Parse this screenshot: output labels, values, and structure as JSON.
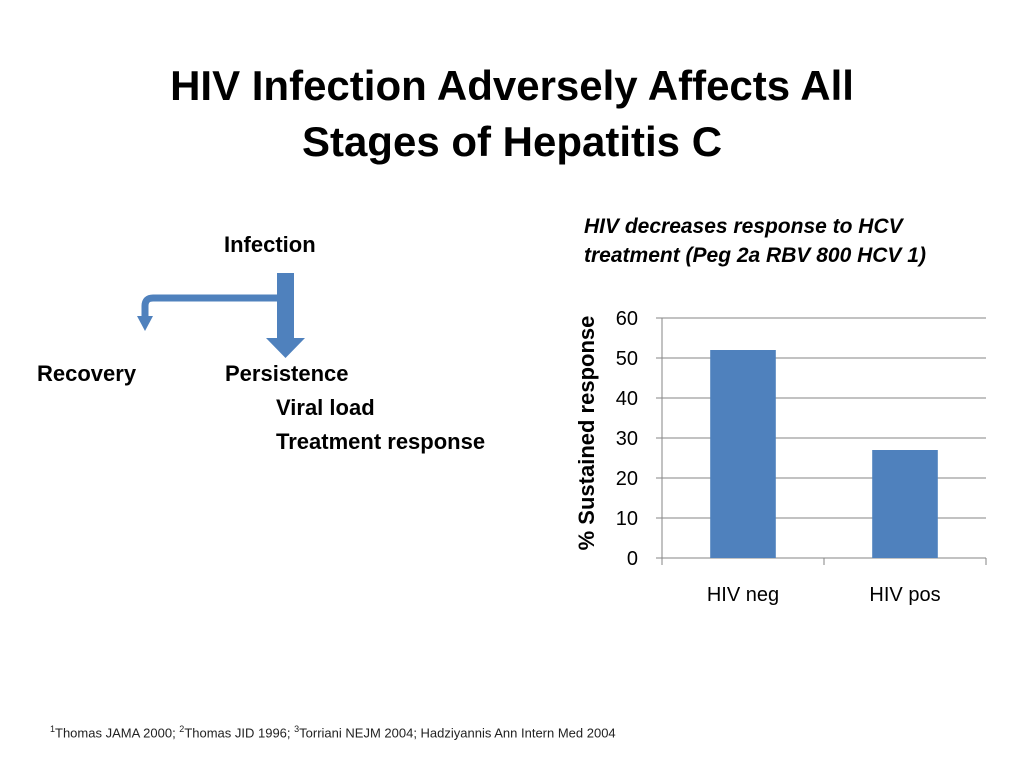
{
  "slide": {
    "title_line1": "HIV Infection Adversely Affects All",
    "title_line2": "Stages of Hepatitis C"
  },
  "flow": {
    "infection": "Infection",
    "recovery": "Recovery",
    "persistence": "Persistence",
    "viral_load": "Viral load",
    "treatment_response": "Treatment response",
    "arrow_color": "#4F81BD"
  },
  "chart_heading": {
    "line1": "HIV decreases response to HCV",
    "line2": "treatment (Peg 2a RBV 800 HCV 1)"
  },
  "chart_data": {
    "type": "bar",
    "categories": [
      "HIV neg",
      "HIV pos"
    ],
    "values": [
      52,
      27
    ],
    "title": "",
    "xlabel": "",
    "ylabel": "% Sustained response",
    "ylim": [
      0,
      60
    ],
    "yticks": [
      0,
      10,
      20,
      30,
      40,
      50,
      60
    ],
    "grid": true,
    "bar_color": "#4F81BD"
  },
  "footnote": {
    "sup1": "1",
    "ref1": "Thomas JAMA 2000; ",
    "sup2": "2",
    "ref2": "Thomas JID 1996; ",
    "sup3": "3",
    "ref3": "Torriani NEJM 2004; Hadziyannis Ann Intern Med 2004"
  }
}
